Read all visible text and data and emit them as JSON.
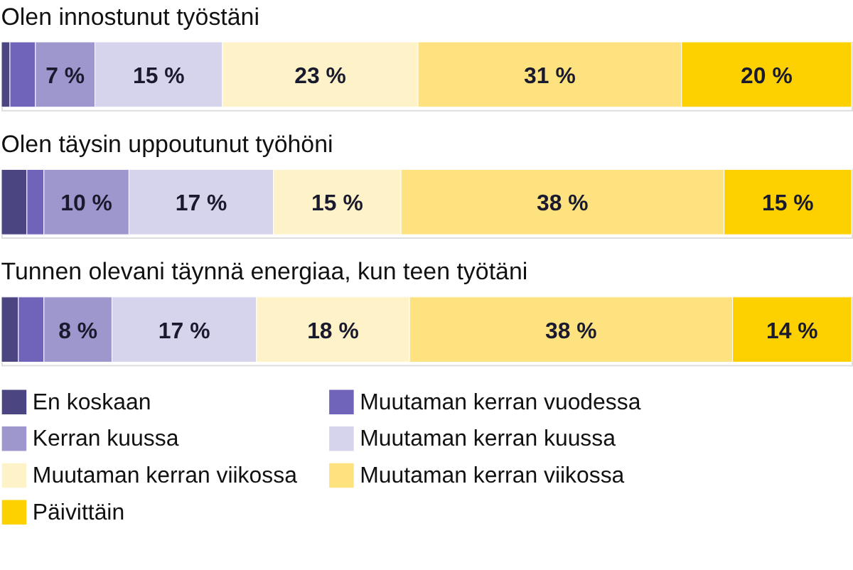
{
  "chart_data": {
    "type": "bar",
    "orientation": "horizontal",
    "stacked": true,
    "categories": [
      "Olen innostunut työstäni",
      "Olen täysin uppoutunut työhöni",
      "Tunnen olevani täynnä energiaa, kun teen työtäni"
    ],
    "series": [
      {
        "name": "En koskaan",
        "color": "#4b4682",
        "values": [
          1,
          3,
          2
        ],
        "value_labels": [
          null,
          null,
          null
        ]
      },
      {
        "name": "Muutaman kerran vuodessa",
        "color": "#6f64b9",
        "values": [
          3,
          2,
          3
        ],
        "value_labels": [
          null,
          null,
          null
        ]
      },
      {
        "name": "Kerran kuussa",
        "color": "#9d97cd",
        "values": [
          7,
          10,
          8
        ],
        "value_labels": [
          "7 %",
          "10 %",
          "8 %"
        ]
      },
      {
        "name": "Muutaman kerran kuussa",
        "color": "#d6d3ec",
        "values": [
          15,
          17,
          17
        ],
        "value_labels": [
          "15 %",
          "17 %",
          "17 %"
        ]
      },
      {
        "name": "Muutaman kerran viikossa",
        "color": "#fef2c9",
        "values": [
          23,
          15,
          18
        ],
        "value_labels": [
          "23 %",
          "15 %",
          "18 %"
        ]
      },
      {
        "name": "Muutaman kerran viikossa",
        "color": "#fde27f",
        "values": [
          31,
          38,
          38
        ],
        "value_labels": [
          "31 %",
          "38 %",
          "38 %"
        ]
      },
      {
        "name": "Päivittäin",
        "color": "#fdd000",
        "values": [
          20,
          15,
          14
        ],
        "value_labels": [
          "20 %",
          "15 %",
          "14 %"
        ]
      }
    ],
    "legend": "bottom"
  }
}
